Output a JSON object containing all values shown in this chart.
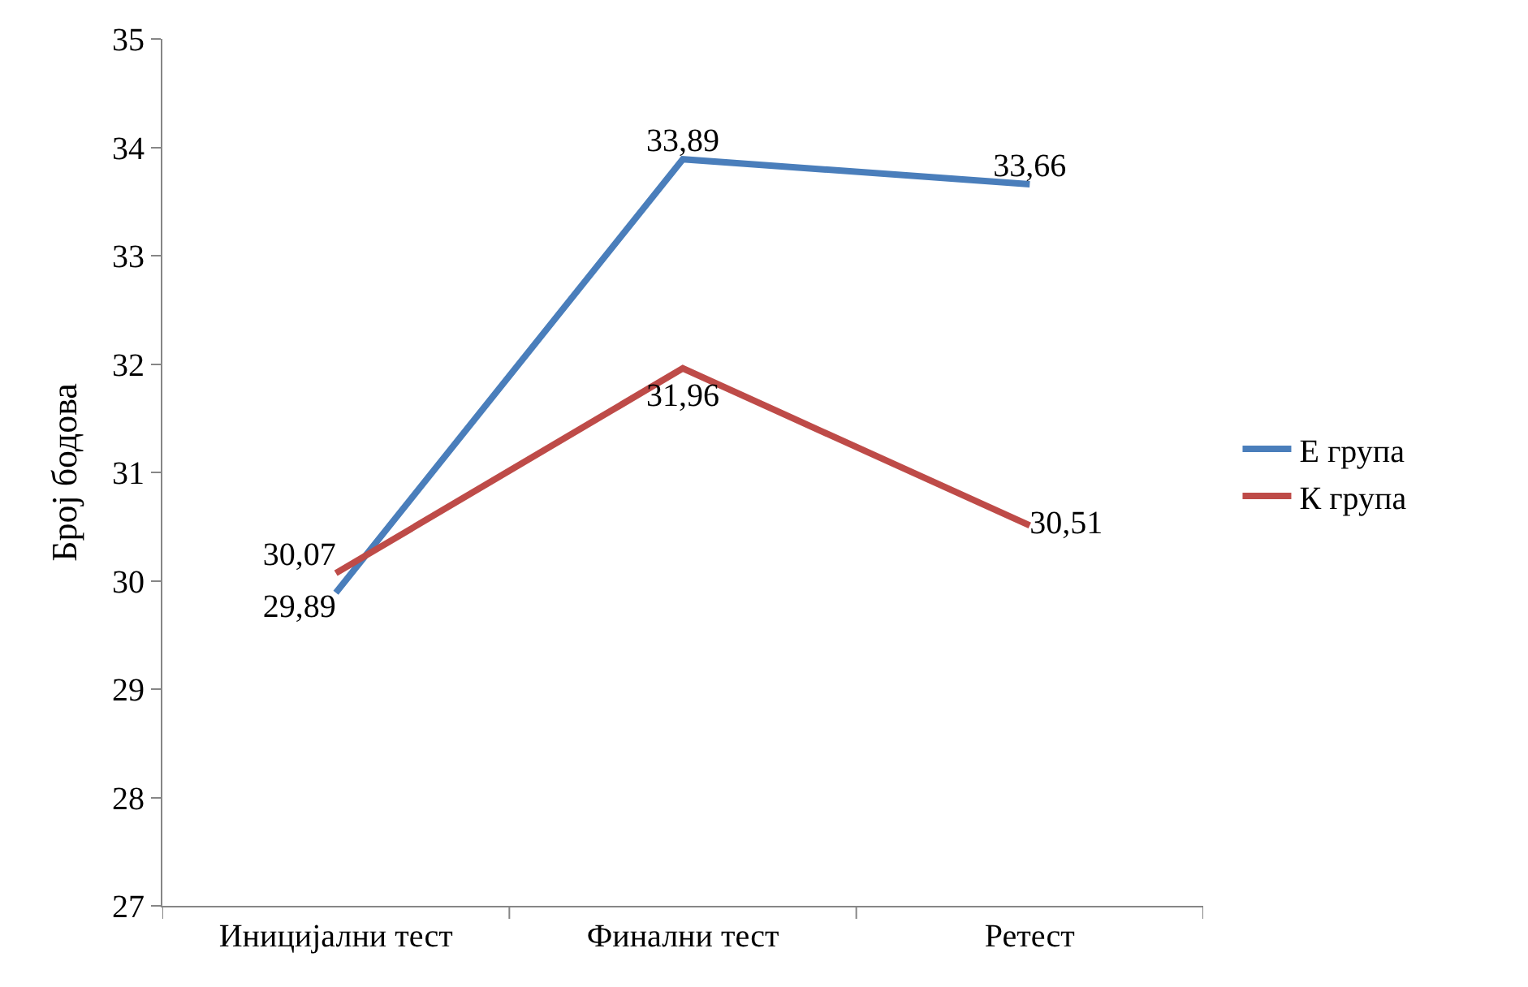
{
  "chart_data": {
    "type": "line",
    "ylabel": "Број бодова",
    "categories": [
      "Иницијални тест",
      "Финални тест",
      "Ретест"
    ],
    "series": [
      {
        "name": "Е група",
        "color": "#4a7ebb",
        "values": [
          29.89,
          33.89,
          33.66
        ],
        "value_labels": [
          "29,89",
          "33,89",
          "33,66"
        ]
      },
      {
        "name": "К група",
        "color": "#be4b48",
        "values": [
          30.07,
          31.96,
          30.51
        ],
        "value_labels": [
          "30,07",
          "31,96",
          "30,51"
        ]
      }
    ],
    "ylim": [
      27,
      35
    ],
    "yticks": [
      27,
      28,
      29,
      30,
      31,
      32,
      33,
      34,
      35
    ],
    "legend": "right",
    "marker": "none",
    "line_style": "solid"
  }
}
